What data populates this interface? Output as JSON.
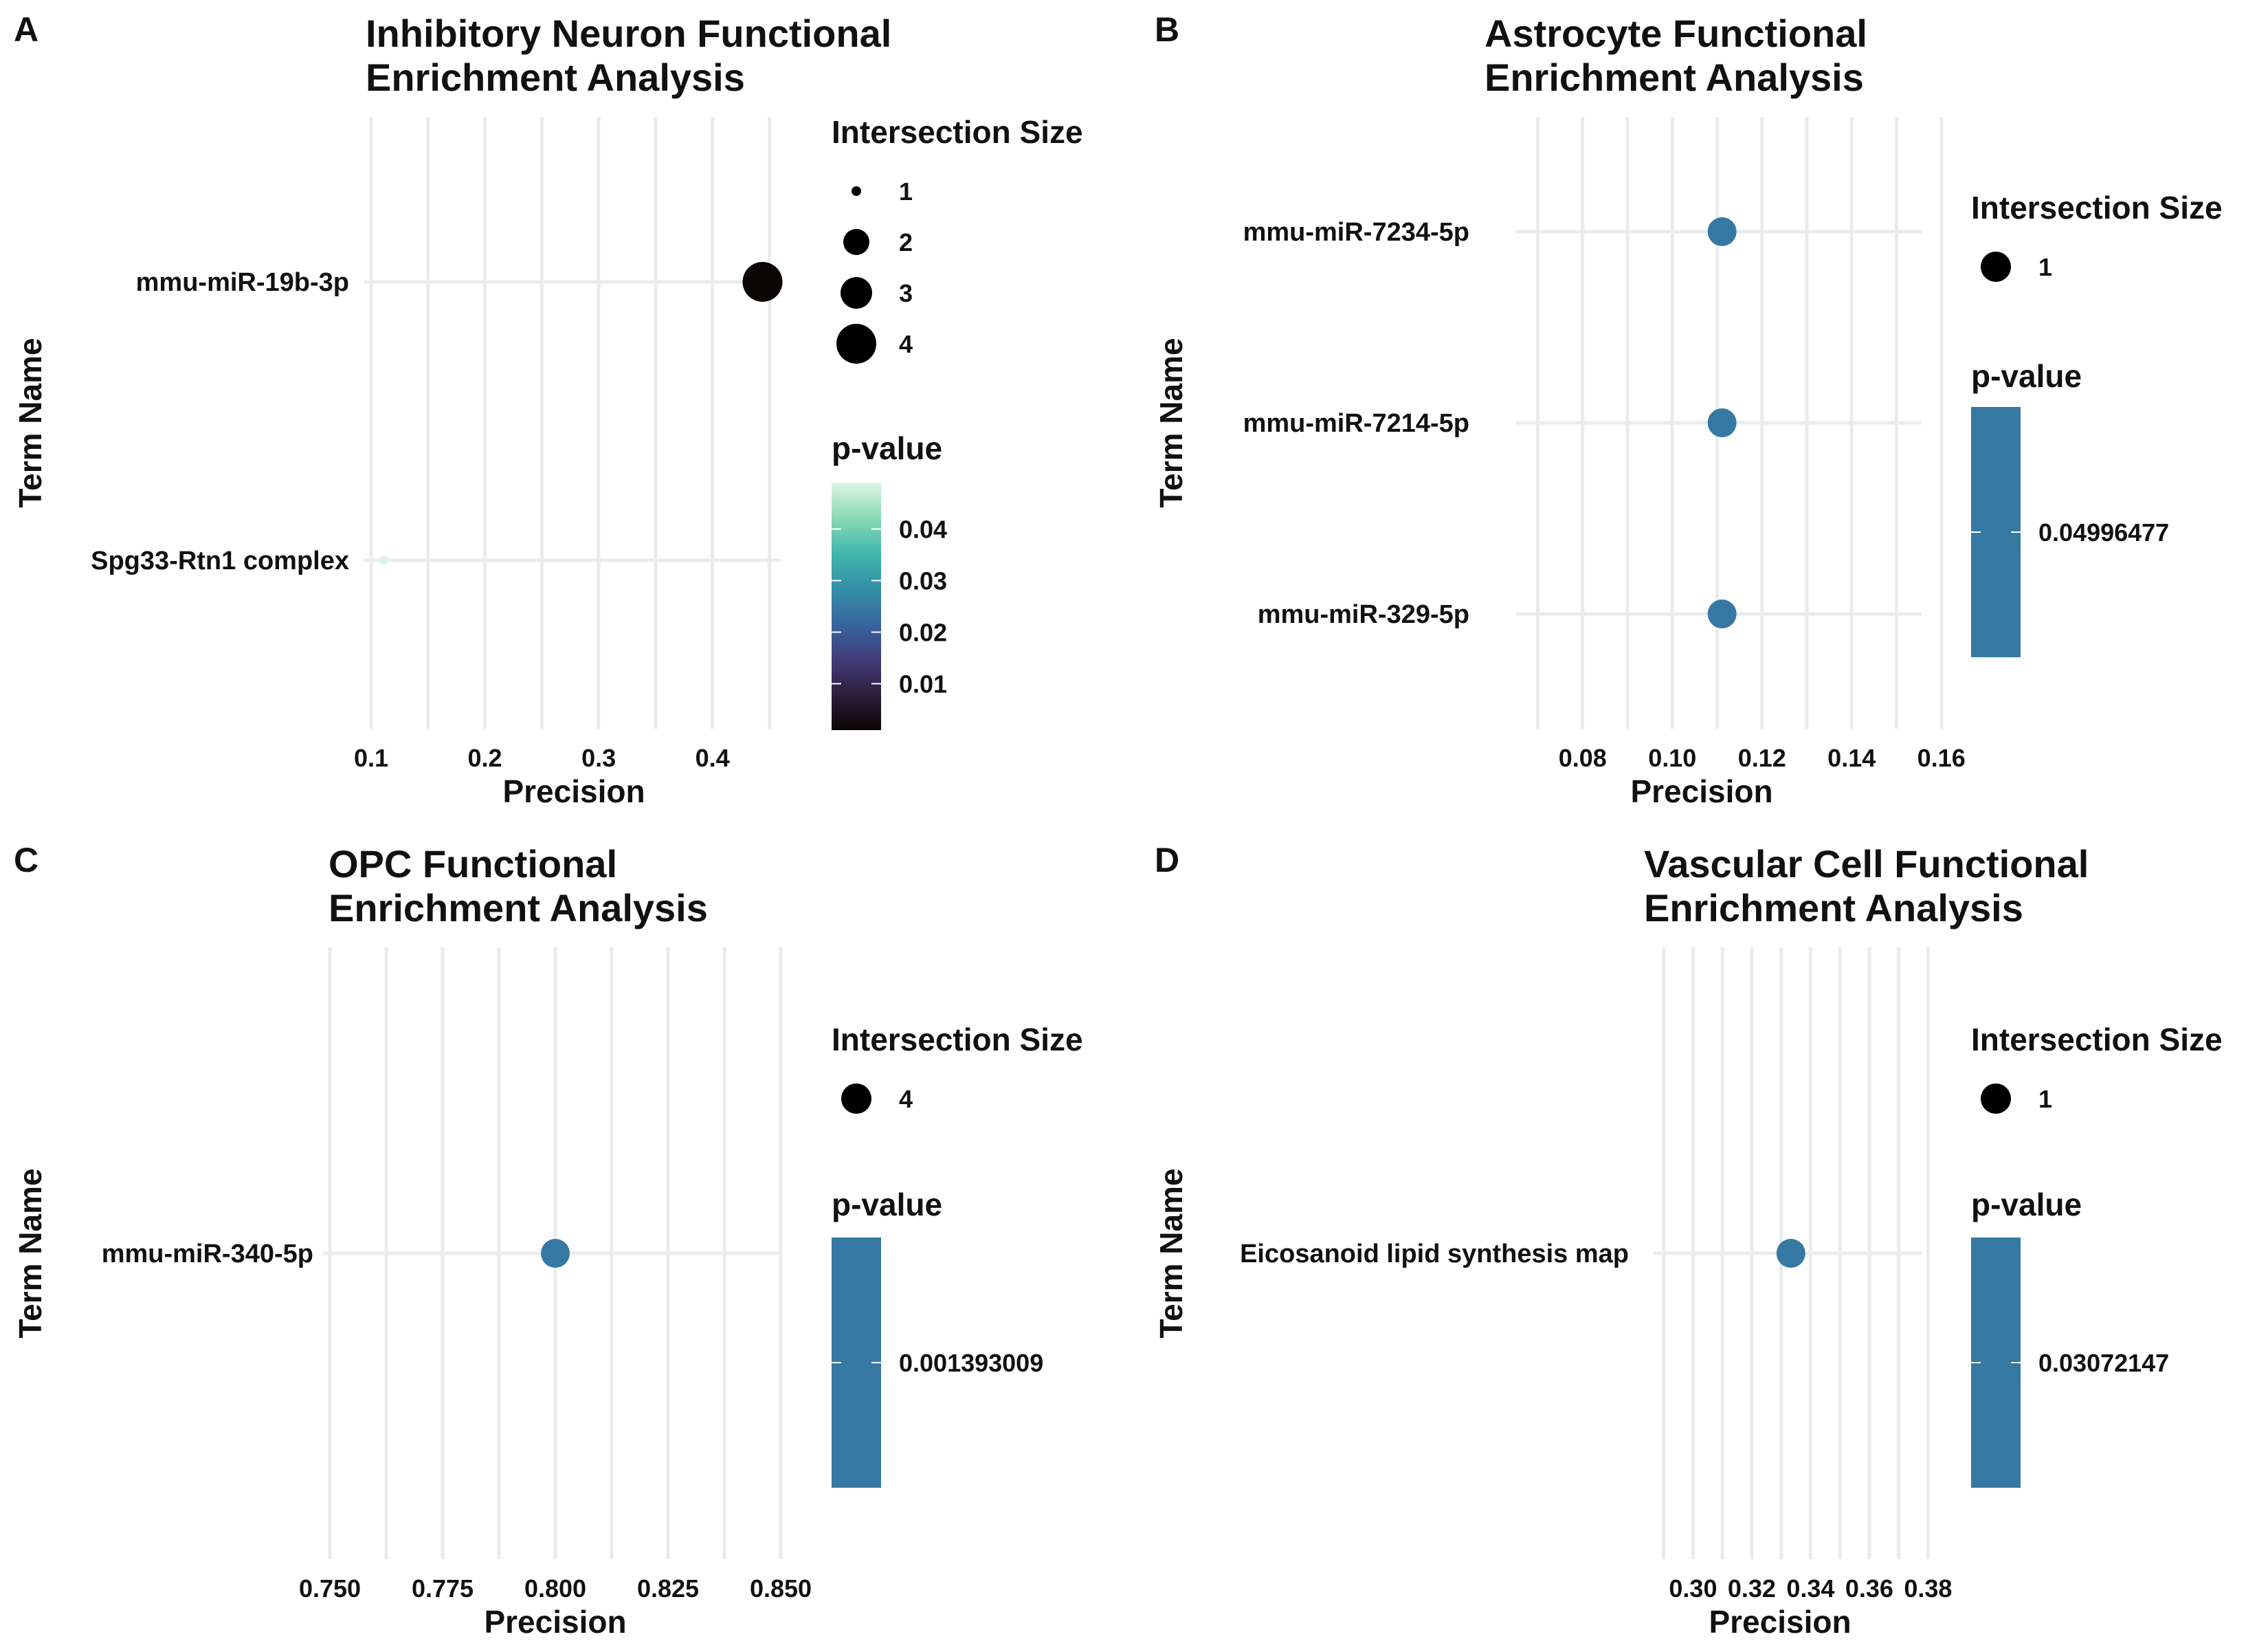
{
  "colors": {
    "grid": "#ebebeb",
    "dot_single": "#3579a3",
    "size_legend_dot": "#000000",
    "pvalue_gradient": [
      "#0b0405",
      "#2e1e3b",
      "#413d7b",
      "#37659e",
      "#348fa7",
      "#40b7ad",
      "#8ad9b1",
      "#def5e5"
    ]
  },
  "chart_data": [
    {
      "panel": "A",
      "type": "scatter",
      "title": [
        "Inhibitory Neuron Functional",
        "Enrichment Analysis"
      ],
      "xlabel": "Precision",
      "ylabel": "Term Name",
      "xlim": [
        0.1,
        0.46
      ],
      "x_ticks": [
        0.1,
        0.2,
        0.3,
        0.4
      ],
      "x_tick_labels": [
        "0.1",
        "0.2",
        "0.3",
        "0.4"
      ],
      "x_minor": [
        0.15,
        0.25,
        0.35,
        0.45
      ],
      "categories": [
        "mmu-miR-19b-3p",
        "Spg33-Rtn1 complex"
      ],
      "points": [
        {
          "term": "mmu-miR-19b-3p",
          "precision": 0.444,
          "intersection_size": 4,
          "p_value": 0.001
        },
        {
          "term": "Spg33-Rtn1 complex",
          "precision": 0.111,
          "intersection_size": 1,
          "p_value": 0.049
        }
      ],
      "size_legend": {
        "title": "Intersection Size",
        "values": [
          1,
          2,
          3,
          4
        ]
      },
      "color_legend": {
        "title": "p-value",
        "type": "gradient",
        "range": [
          0.001,
          0.049
        ],
        "ticks": [
          0.01,
          0.02,
          0.03,
          0.04
        ],
        "tick_labels": [
          "0.01",
          "0.02",
          "0.03",
          "0.04"
        ]
      }
    },
    {
      "panel": "B",
      "type": "scatter",
      "title": [
        "Astrocyte Functional",
        "Enrichment Analysis"
      ],
      "xlabel": "Precision",
      "ylabel": "Term Name",
      "xlim": [
        0.0667,
        0.1556
      ],
      "x_ticks": [
        0.08,
        0.1,
        0.12,
        0.14,
        0.16
      ],
      "x_tick_labels": [
        "0.08",
        "0.10",
        "0.12",
        "0.14",
        "0.16"
      ],
      "x_minor": [
        0.07,
        0.09,
        0.11,
        0.13,
        0.15
      ],
      "categories": [
        "mmu-miR-7234-5p",
        "mmu-miR-7214-5p",
        "mmu-miR-329-5p"
      ],
      "points": [
        {
          "term": "mmu-miR-7234-5p",
          "precision": 0.1111,
          "intersection_size": 1,
          "p_value": 0.04996477
        },
        {
          "term": "mmu-miR-7214-5p",
          "precision": 0.1111,
          "intersection_size": 1,
          "p_value": 0.04996477
        },
        {
          "term": "mmu-miR-329-5p",
          "precision": 0.1111,
          "intersection_size": 1,
          "p_value": 0.04996477
        }
      ],
      "size_legend": {
        "title": "Intersection Size",
        "values": [
          1
        ]
      },
      "color_legend": {
        "title": "p-value",
        "type": "single",
        "tick_labels": [
          "0.04996477"
        ]
      }
    },
    {
      "panel": "C",
      "type": "scatter",
      "title": [
        "OPC Functional",
        "Enrichment Analysis"
      ],
      "xlabel": "Precision",
      "ylabel": "Term Name",
      "xlim": [
        0.75,
        0.85
      ],
      "x_ticks": [
        0.75,
        0.775,
        0.8,
        0.825,
        0.85
      ],
      "x_tick_labels": [
        "0.750",
        "0.775",
        "0.800",
        "0.825",
        "0.850"
      ],
      "x_minor": [
        0.7625,
        0.7875,
        0.8125,
        0.8375
      ],
      "categories": [
        "mmu-miR-340-5p"
      ],
      "points": [
        {
          "term": "mmu-miR-340-5p",
          "precision": 0.8,
          "intersection_size": 4,
          "p_value": 0.001393009
        }
      ],
      "size_legend": {
        "title": "Intersection Size",
        "values": [
          4
        ]
      },
      "color_legend": {
        "title": "p-value",
        "type": "single",
        "tick_labels": [
          "0.001393009"
        ]
      }
    },
    {
      "panel": "D",
      "type": "scatter",
      "title": [
        "Vascular Cell Functional",
        "Enrichment Analysis"
      ],
      "xlabel": "Precision",
      "ylabel": "Term Name",
      "xlim": [
        0.2889,
        0.3778
      ],
      "x_ticks": [
        0.3,
        0.32,
        0.34,
        0.36,
        0.38
      ],
      "x_tick_labels": [
        "0.30",
        "0.32",
        "0.34",
        "0.36",
        "0.38"
      ],
      "x_minor": [
        0.29,
        0.31,
        0.33,
        0.35,
        0.37
      ],
      "categories": [
        "Eicosanoid lipid synthesis map"
      ],
      "points": [
        {
          "term": "Eicosanoid lipid synthesis map",
          "precision": 0.3333,
          "intersection_size": 1,
          "p_value": 0.03072147
        }
      ],
      "size_legend": {
        "title": "Intersection Size",
        "values": [
          1
        ]
      },
      "color_legend": {
        "title": "p-value",
        "type": "single",
        "tick_labels": [
          "0.03072147"
        ]
      }
    }
  ]
}
